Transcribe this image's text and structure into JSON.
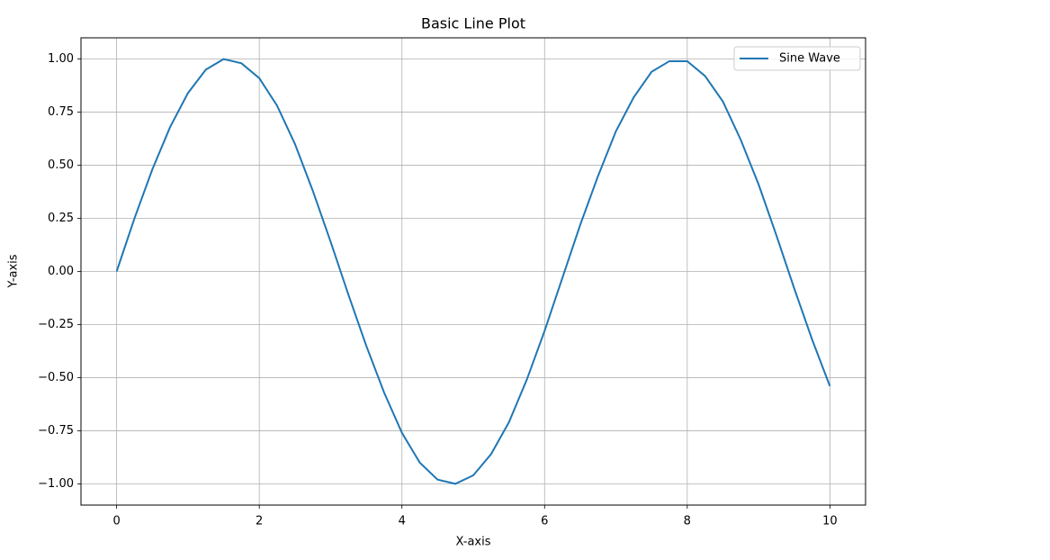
{
  "chart_data": {
    "type": "line",
    "title": "Basic Line Plot",
    "x_label": "X-axis",
    "y_label": "Y-axis",
    "x": [
      0,
      0.25,
      0.5,
      0.75,
      1,
      1.25,
      1.5,
      1.75,
      2,
      2.25,
      2.5,
      2.75,
      3,
      3.25,
      3.5,
      3.75,
      4,
      4.25,
      4.5,
      4.75,
      5,
      5.25,
      5.5,
      5.75,
      6,
      6.25,
      6.5,
      6.75,
      7,
      7.25,
      7.5,
      7.75,
      8,
      8.25,
      8.5,
      8.75,
      9,
      9.25,
      9.5,
      9.75,
      10
    ],
    "series": [
      {
        "name": "Sine Wave",
        "color": "#1f77b4",
        "values": [
          0,
          0.25,
          0.48,
          0.68,
          0.84,
          0.95,
          1.0,
          0.98,
          0.91,
          0.78,
          0.6,
          0.38,
          0.14,
          -0.11,
          -0.35,
          -0.57,
          -0.76,
          -0.9,
          -0.98,
          -1.0,
          -0.96,
          -0.86,
          -0.71,
          -0.51,
          -0.28,
          -0.03,
          0.22,
          0.45,
          0.66,
          0.82,
          0.94,
          0.99,
          0.99,
          0.92,
          0.8,
          0.62,
          0.41,
          0.17,
          -0.08,
          -0.32,
          -0.54
        ]
      }
    ],
    "xlim": [
      -0.5,
      10.5
    ],
    "xticks": [
      0,
      2,
      4,
      6,
      8,
      10
    ],
    "ylim": [
      -1.1,
      1.1
    ],
    "yticks": [
      {
        "value": -1,
        "label": "−1.00"
      },
      {
        "value": -0.75,
        "label": "−0.75"
      },
      {
        "value": -0.5,
        "label": "−0.50"
      },
      {
        "value": -0.25,
        "label": "−0.25"
      },
      {
        "value": 0,
        "label": "0.00"
      },
      {
        "value": 0.25,
        "label": "0.25"
      },
      {
        "value": 0.5,
        "label": "0.50"
      },
      {
        "value": 0.75,
        "label": "0.75"
      },
      {
        "value": 1,
        "label": "1.00"
      }
    ],
    "grid": true,
    "legend": "upper right"
  }
}
